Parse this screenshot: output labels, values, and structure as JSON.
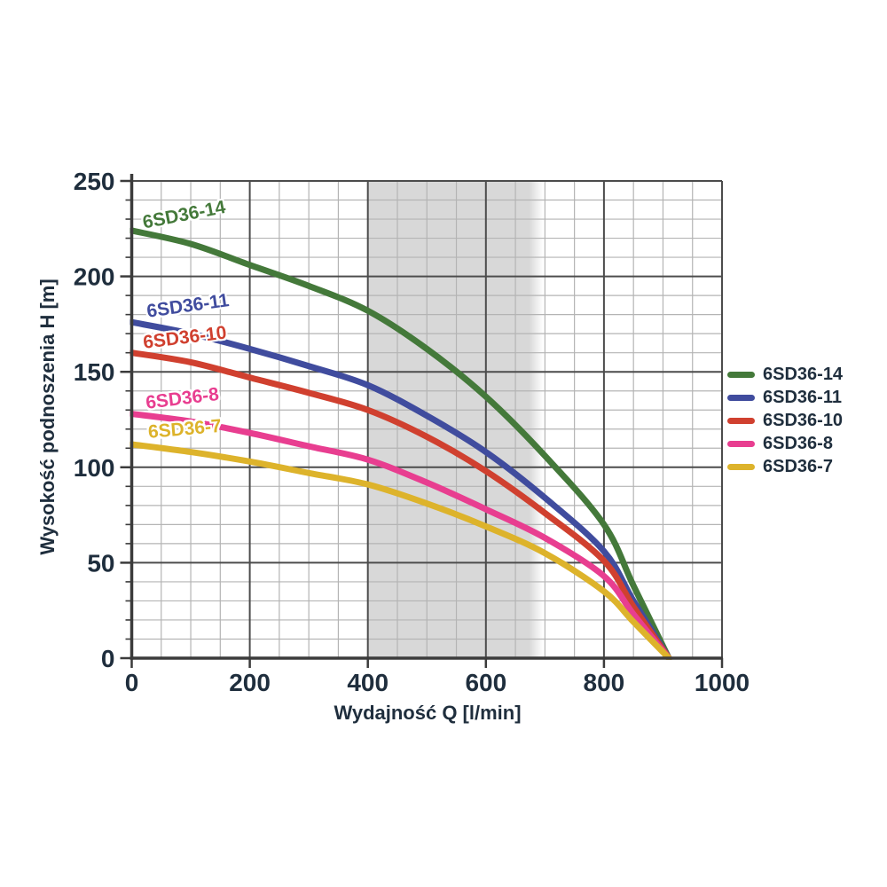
{
  "chart_data": {
    "type": "line",
    "title": "",
    "xlabel": "Wydajność Q [l/min]",
    "ylabel": "Wysokość podnoszenia H [m]",
    "xlim": [
      0,
      1000
    ],
    "ylim": [
      0,
      250
    ],
    "x_major_ticks": [
      0,
      200,
      400,
      600,
      800,
      1000
    ],
    "x_minor_step": 50,
    "y_major_ticks": [
      0,
      50,
      100,
      150,
      200,
      250
    ],
    "y_minor_step": 10,
    "grid": "both",
    "legend_position": "right",
    "operating_band": {
      "from": 400,
      "to": 697,
      "color": "#d8d8d8"
    },
    "series": [
      {
        "name": "6SD36-14",
        "color": "#44793a",
        "points": [
          [
            0,
            224
          ],
          [
            100,
            217
          ],
          [
            200,
            206
          ],
          [
            300,
            195
          ],
          [
            400,
            182
          ],
          [
            500,
            162
          ],
          [
            600,
            137
          ],
          [
            700,
            106
          ],
          [
            800,
            70
          ],
          [
            850,
            38
          ],
          [
            910,
            0
          ]
        ]
      },
      {
        "name": "6SD36-11",
        "color": "#404c9e",
        "points": [
          [
            0,
            176
          ],
          [
            100,
            170
          ],
          [
            200,
            162
          ],
          [
            300,
            153
          ],
          [
            400,
            143
          ],
          [
            500,
            127
          ],
          [
            600,
            108
          ],
          [
            700,
            84
          ],
          [
            800,
            56
          ],
          [
            850,
            30
          ],
          [
            910,
            0
          ]
        ]
      },
      {
        "name": "6SD36-10",
        "color": "#d0402f",
        "points": [
          [
            0,
            160
          ],
          [
            100,
            155
          ],
          [
            200,
            147
          ],
          [
            300,
            139
          ],
          [
            400,
            130
          ],
          [
            500,
            116
          ],
          [
            600,
            98
          ],
          [
            700,
            76
          ],
          [
            800,
            51
          ],
          [
            850,
            27
          ],
          [
            910,
            0
          ]
        ]
      },
      {
        "name": "6SD36-8",
        "color": "#e83e90",
        "points": [
          [
            0,
            128
          ],
          [
            100,
            124
          ],
          [
            200,
            118
          ],
          [
            300,
            111
          ],
          [
            400,
            104
          ],
          [
            500,
            92
          ],
          [
            600,
            78
          ],
          [
            700,
            63
          ],
          [
            800,
            43
          ],
          [
            850,
            23
          ],
          [
            910,
            0
          ]
        ]
      },
      {
        "name": "6SD36-7",
        "color": "#ddb32b",
        "points": [
          [
            0,
            112
          ],
          [
            100,
            108
          ],
          [
            200,
            103
          ],
          [
            300,
            97
          ],
          [
            400,
            91
          ],
          [
            500,
            81
          ],
          [
            600,
            69
          ],
          [
            700,
            55
          ],
          [
            800,
            35
          ],
          [
            850,
            19
          ],
          [
            910,
            0
          ]
        ]
      }
    ],
    "colors": {
      "text": "#1f2e3d",
      "grid_minor": "#b4b4b4",
      "grid_major": "#4c4c4c",
      "axis": "#3b3b3b",
      "band": "#d8d8d8",
      "background": "#ffffff"
    }
  }
}
